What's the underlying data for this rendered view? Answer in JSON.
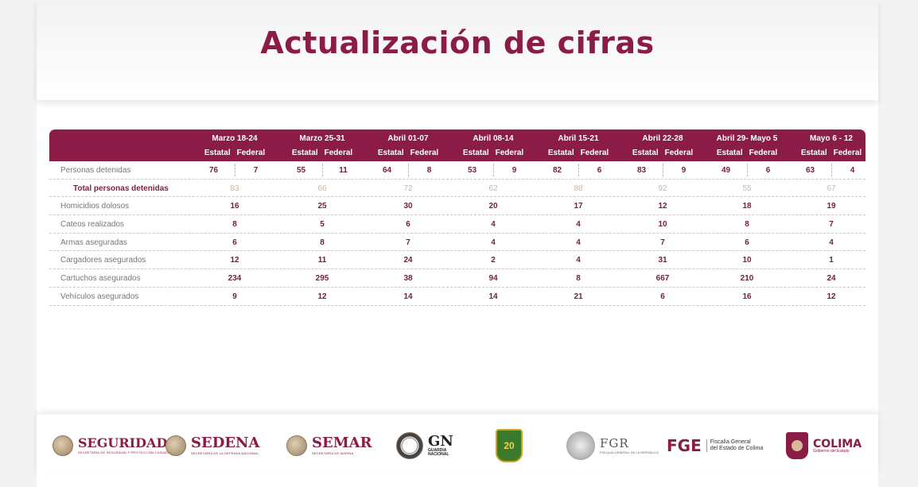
{
  "title": "Actualización de cifras",
  "table": {
    "periods": [
      "Marzo 18-24",
      "Marzo 25-31",
      "Abril 01-07",
      "Abril 08-14",
      "Abril 15-21",
      "Abril 22-28",
      "Abril 29- Mayo 5",
      "Mayo 6 - 12"
    ],
    "sub_headers": {
      "estatal": "Estatal",
      "federal": "Federal"
    },
    "detenidos": {
      "label": "Personas detenidas",
      "values": [
        [
          "76",
          "7"
        ],
        [
          "55",
          "11"
        ],
        [
          "64",
          "8"
        ],
        [
          "53",
          "9"
        ],
        [
          "82",
          "6"
        ],
        [
          "83",
          "9"
        ],
        [
          "49",
          "6"
        ],
        [
          "63",
          "4"
        ]
      ]
    },
    "total_detenidos": {
      "label": "Total personas detenidas",
      "values": [
        "83",
        "66",
        "72",
        "62",
        "88",
        "92",
        "55",
        "67"
      ]
    },
    "rows": [
      {
        "label": "Homicidios dolosos",
        "values": [
          "16",
          "25",
          "30",
          "20",
          "17",
          "12",
          "18",
          "19"
        ]
      },
      {
        "label": "Cateos realizados",
        "values": [
          "8",
          "5",
          "6",
          "4",
          "4",
          "10",
          "8",
          "7"
        ]
      },
      {
        "label": "Armas aseguradas",
        "values": [
          "6",
          "8",
          "7",
          "4",
          "4",
          "7",
          "6",
          "4"
        ]
      },
      {
        "label": "Cargadores asegurados",
        "values": [
          "12",
          "11",
          "24",
          "2",
          "4",
          "31",
          "10",
          "1"
        ]
      },
      {
        "label": "Cartuchos asegurados",
        "values": [
          "234",
          "295",
          "38",
          "94",
          "8",
          "667",
          "210",
          "24"
        ]
      },
      {
        "label": "Vehículos asegurados",
        "values": [
          "9",
          "12",
          "14",
          "14",
          "21",
          "6",
          "16",
          "12"
        ]
      }
    ]
  },
  "colors": {
    "accent": "#8a1c47",
    "muted_total": "#c9b5a5"
  },
  "footer": {
    "seguridad": {
      "name": "SEGURIDAD",
      "sub": "SECRETARÍA DE SEGURIDAD Y PROTECCIÓN CIUDADANA"
    },
    "sedena": {
      "name": "SEDENA",
      "sub": "SECRETARÍA DE LA DEFENSA NACIONAL"
    },
    "semar": {
      "name": "SEMAR",
      "sub": "SECRETARÍA DE MARINA"
    },
    "gn": {
      "name": "GN",
      "sub1": "GUARDIA",
      "sub2": "NACIONAL"
    },
    "shield": {
      "text": "20"
    },
    "fgr": {
      "name": "FGR",
      "sub": "FISCALÍA GENERAL DE LA REPÚBLICA"
    },
    "fge": {
      "name": "FGE",
      "sub1": "Fiscalía General",
      "sub2": "del Estado de Colima"
    },
    "colima": {
      "name": "COLIMA",
      "sub": "Gobierno del Estado"
    }
  }
}
